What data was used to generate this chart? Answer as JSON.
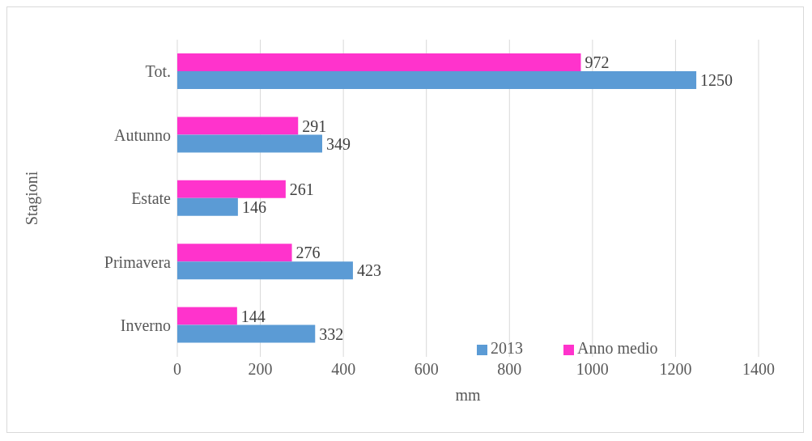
{
  "chart_data": {
    "type": "bar",
    "orientation": "horizontal",
    "categories": [
      "Tot.",
      "Autunno",
      "Estate",
      "Primavera",
      "Inverno"
    ],
    "series": [
      {
        "name": "Anno medio",
        "color": "#ff33cc",
        "values": [
          972,
          291,
          261,
          276,
          144
        ]
      },
      {
        "name": "2013",
        "color": "#5b9bd5",
        "values": [
          1250,
          349,
          146,
          423,
          332
        ]
      }
    ],
    "xlim": [
      0,
      1400
    ],
    "xticks": [
      0,
      200,
      400,
      600,
      800,
      1000,
      1200,
      1400
    ],
    "xlabel": "mm",
    "ylabel": "Stagioni",
    "grid": "x",
    "legend": "bottom right",
    "data_labels": true
  }
}
